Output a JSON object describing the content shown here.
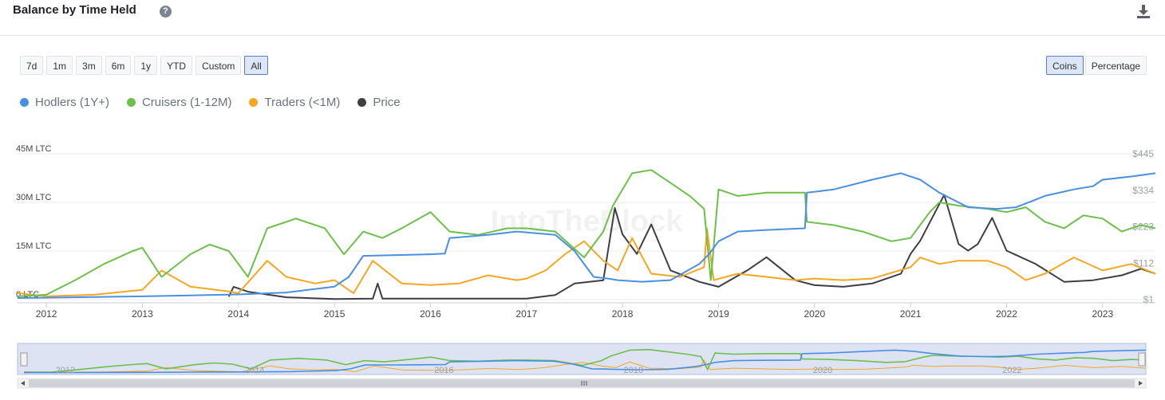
{
  "header": {
    "title": "Balance by Time Held",
    "help_icon": "?"
  },
  "ranges": [
    "7d",
    "1m",
    "3m",
    "6m",
    "1y",
    "YTD",
    "Custom",
    "All"
  ],
  "active_range": "All",
  "units": [
    "Coins",
    "Percentage"
  ],
  "active_unit": "Coins",
  "watermark": "IntoTheBlock",
  "colors": {
    "hodlers": "#4a90e2",
    "cruisers": "#6cc04a",
    "traders": "#f5a623",
    "price": "#3d3f45"
  },
  "chart_data": {
    "type": "line",
    "title": "Balance by Time Held",
    "x_ticks": [
      "2012",
      "2013",
      "2014",
      "2015",
      "2016",
      "2017",
      "2018",
      "2019",
      "2020",
      "2021",
      "2022",
      "2023"
    ],
    "y_left_ticks": [
      "0 LTC",
      "15M LTC",
      "30M LTC",
      "45M LTC"
    ],
    "y_left_range": [
      0,
      45000000
    ],
    "y_right_ticks": [
      "$1",
      "$112",
      "$223",
      "$334",
      "$445"
    ],
    "y_right_range": [
      1,
      445
    ],
    "legend_position": "top-left",
    "navigator_labels": [
      "2012",
      "2014",
      "2016",
      "2018",
      "2020",
      "2022"
    ],
    "series": [
      {
        "name": "Hodlers (1Y+)",
        "key": "hodlers",
        "axis": "left",
        "x": [
          2011.7,
          2012.0,
          2012.5,
          2013.0,
          2013.5,
          2014.0,
          2014.5,
          2015.0,
          2015.15,
          2015.3,
          2015.6,
          2016.0,
          2016.15,
          2016.2,
          2016.6,
          2016.9,
          2017.3,
          2017.5,
          2017.7,
          2017.85,
          2017.95,
          2018.2,
          2018.5,
          2018.8,
          2018.9,
          2019.0,
          2019.2,
          2019.5,
          2019.9,
          2019.92,
          2020.2,
          2020.6,
          2020.9,
          2021.1,
          2021.3,
          2021.6,
          2021.9,
          2022.1,
          2022.4,
          2022.7,
          2022.9,
          2023.0,
          2023.3,
          2023.55
        ],
        "values": [
          500000,
          600000,
          800000,
          1000000,
          1300000,
          1600000,
          2200000,
          4000000,
          7000000,
          13500000,
          13700000,
          14000000,
          14200000,
          19000000,
          20000000,
          21000000,
          20000000,
          15000000,
          7000000,
          6500000,
          6000000,
          5500000,
          6000000,
          11000000,
          14000000,
          18000000,
          21000000,
          21500000,
          22000000,
          33000000,
          34000000,
          37000000,
          39000000,
          37000000,
          33000000,
          28500000,
          28000000,
          28500000,
          32000000,
          34000000,
          35000000,
          37000000,
          38000000,
          39000000
        ]
      },
      {
        "name": "Cruisers (1-12M)",
        "key": "cruisers",
        "axis": "left",
        "x": [
          2011.7,
          2012.0,
          2012.3,
          2012.6,
          2012.9,
          2013.0,
          2013.2,
          2013.5,
          2013.7,
          2013.9,
          2014.1,
          2014.3,
          2014.6,
          2014.9,
          2015.0,
          2015.1,
          2015.3,
          2015.5,
          2015.7,
          2016.0,
          2016.2,
          2016.5,
          2016.8,
          2017.0,
          2017.3,
          2017.6,
          2017.8,
          2017.9,
          2018.1,
          2018.3,
          2018.5,
          2018.7,
          2018.85,
          2018.92,
          2019.0,
          2019.2,
          2019.5,
          2019.9,
          2019.92,
          2020.2,
          2020.5,
          2020.8,
          2021.0,
          2021.2,
          2021.3,
          2021.5,
          2021.8,
          2022.0,
          2022.2,
          2022.4,
          2022.6,
          2022.8,
          2023.0,
          2023.2,
          2023.4,
          2023.55
        ],
        "values": [
          1000000,
          1500000,
          6000000,
          11000000,
          15000000,
          16000000,
          7000000,
          14000000,
          17000000,
          15000000,
          7000000,
          22000000,
          25000000,
          22000000,
          18000000,
          14000000,
          21000000,
          19000000,
          22000000,
          27000000,
          21000000,
          20000000,
          22000000,
          22000000,
          21000000,
          13000000,
          21000000,
          29000000,
          39000000,
          40000000,
          36000000,
          32000000,
          28000000,
          6000000,
          34000000,
          32000000,
          33000000,
          33000000,
          24000000,
          23000000,
          21000000,
          18000000,
          19000000,
          27000000,
          30000000,
          29000000,
          28000000,
          27000000,
          28500000,
          24000000,
          22000000,
          26000000,
          25000000,
          21000000,
          23000000,
          22000000
        ]
      },
      {
        "name": "Traders (<1M)",
        "key": "traders",
        "axis": "left",
        "x": [
          2011.7,
          2012.0,
          2012.5,
          2013.0,
          2013.2,
          2013.5,
          2013.9,
          2014.0,
          2014.3,
          2014.5,
          2014.8,
          2015.0,
          2015.2,
          2015.4,
          2015.7,
          2016.0,
          2016.3,
          2016.6,
          2016.9,
          2017.0,
          2017.2,
          2017.4,
          2017.6,
          2017.8,
          2017.95,
          2018.1,
          2018.3,
          2018.6,
          2018.85,
          2018.88,
          2018.95,
          2019.2,
          2019.5,
          2019.8,
          2020.0,
          2020.3,
          2020.6,
          2021.0,
          2021.1,
          2021.3,
          2021.5,
          2021.8,
          2022.0,
          2022.2,
          2022.4,
          2022.7,
          2023.0,
          2023.3,
          2023.55
        ],
        "values": [
          2000000,
          1000000,
          1500000,
          3000000,
          9000000,
          4000000,
          2500000,
          2000000,
          12000000,
          7000000,
          5000000,
          6000000,
          2000000,
          12000000,
          5000000,
          4500000,
          5000000,
          7500000,
          6000000,
          6500000,
          9000000,
          14000000,
          18000000,
          12000000,
          9000000,
          19000000,
          8000000,
          7000000,
          10000000,
          22000000,
          6000000,
          8000000,
          7000000,
          6000000,
          6500000,
          6000000,
          6500000,
          10000000,
          13000000,
          11000000,
          12000000,
          12000000,
          10000000,
          6000000,
          8000000,
          13000000,
          9000000,
          11000000,
          8000000
        ]
      },
      {
        "name": "Price",
        "key": "price",
        "axis": "right",
        "x": [
          2013.9,
          2013.95,
          2014.1,
          2014.5,
          2015.0,
          2015.4,
          2015.45,
          2015.5,
          2016.0,
          2016.5,
          2017.0,
          2017.3,
          2017.5,
          2017.8,
          2017.92,
          2018.0,
          2018.15,
          2018.3,
          2018.5,
          2018.8,
          2019.0,
          2019.3,
          2019.5,
          2019.8,
          2020.0,
          2020.3,
          2020.6,
          2020.9,
          2021.0,
          2021.1,
          2021.35,
          2021.5,
          2021.6,
          2021.7,
          2021.85,
          2022.0,
          2022.3,
          2022.6,
          2022.9,
          2023.2,
          2023.4,
          2023.55
        ],
        "values": [
          10,
          40,
          25,
          8,
          3,
          4,
          50,
          4,
          4,
          4,
          4,
          15,
          50,
          60,
          280,
          200,
          140,
          230,
          90,
          55,
          40,
          90,
          130,
          60,
          45,
          40,
          50,
          80,
          140,
          180,
          320,
          170,
          150,
          170,
          250,
          150,
          110,
          55,
          60,
          75,
          95,
          80
        ]
      }
    ]
  }
}
